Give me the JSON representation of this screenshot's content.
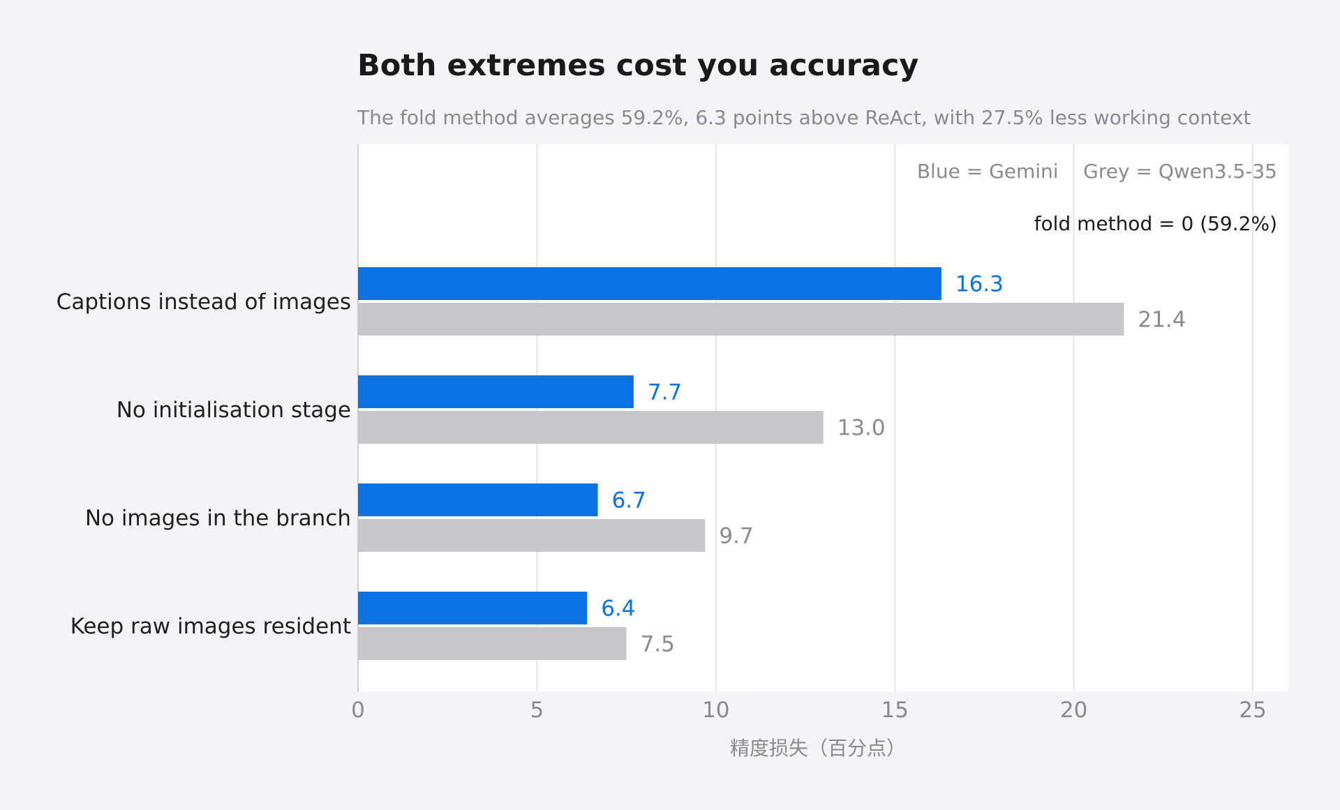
{
  "chart_data": {
    "type": "bar",
    "orientation": "horizontal",
    "title": "Both extremes cost you accuracy",
    "subtitle": "The fold method averages 59.2%, 6.3 points above ReAct, with 27.5% less working context",
    "xlabel": "精度损失（百分点）",
    "ylabel": "",
    "xlim": [
      0,
      26
    ],
    "xticks": [
      0,
      5,
      10,
      15,
      20,
      25
    ],
    "grid": true,
    "legend_text": "Blue = Gemini    Grey = Qwen3.5-35",
    "legend_placement": "top-right",
    "annotation": "fold method = 0 (59.2%)",
    "categories": [
      "Captions instead of images",
      "No initialisation stage",
      "No images in the branch",
      "Keep raw images resident"
    ],
    "series": [
      {
        "name": "Gemini",
        "color": "#0a72e3",
        "values": [
          16.3,
          7.7,
          6.7,
          6.4
        ],
        "labels": [
          "16.3",
          "7.7",
          "6.7",
          "6.4"
        ]
      },
      {
        "name": "Qwen3.5-35",
        "color": "#c7c7cb",
        "label_color": "#8a8a8e",
        "values": [
          21.4,
          13.0,
          9.7,
          7.5
        ],
        "labels": [
          "21.4",
          "13.0",
          "9.7",
          "7.5"
        ]
      }
    ]
  }
}
